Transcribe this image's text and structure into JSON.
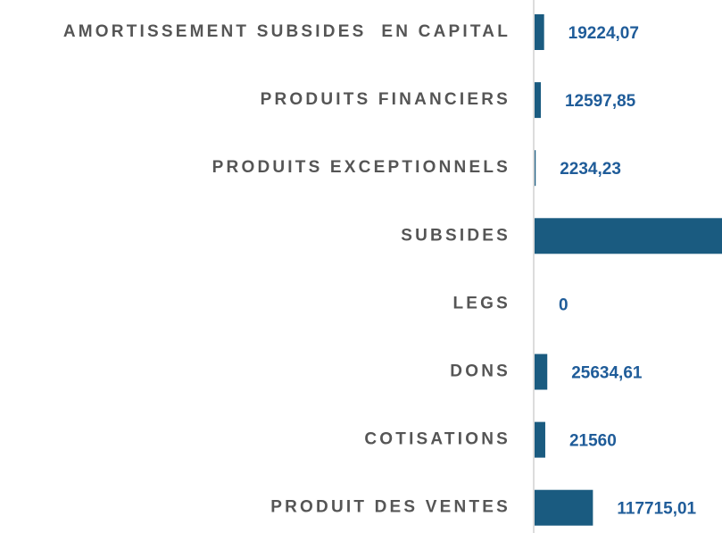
{
  "chart_data": {
    "type": "hbar",
    "categories": [
      "AMORTISSEMENT SUBSIDES  EN CAPITAL",
      "PRODUITS FINANCIERS",
      "PRODUITS EXCEPTIONNELS",
      "SUBSIDES",
      "LEGS",
      "DONS",
      "COTISATIONS",
      "PRODUIT DES VENTES"
    ],
    "values": [
      19224.07,
      12597.85,
      2234.23,
      380000,
      0,
      25634.61,
      21560,
      117715.01
    ],
    "value_labels": [
      "19224,07",
      "12597,85",
      "2234,23",
      null,
      "0",
      "25634,61",
      "21560",
      "117715,01"
    ],
    "color": "#1a5b80",
    "xlim": [
      0,
      380000
    ]
  }
}
